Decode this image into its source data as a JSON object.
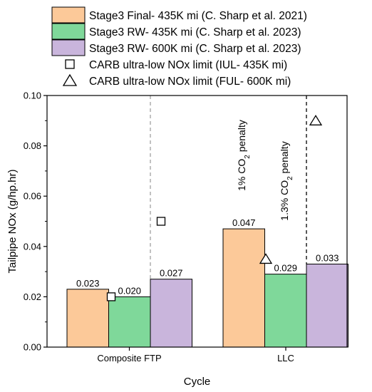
{
  "chart_data": {
    "type": "bar",
    "xlabel": "Cycle",
    "ylabel": "Tailpipe NOx (g/hp.hr)",
    "ylim": [
      0.0,
      0.1
    ],
    "yticks": [
      "0.00",
      "0.02",
      "0.04",
      "0.06",
      "0.08",
      "0.10"
    ],
    "categories": [
      "Composite FTP",
      "LLC"
    ],
    "series": [
      {
        "name": "Stage3 Final- 435K mi (C. Sharp et al. 2021)",
        "color": "#fcc999",
        "values": [
          0.023,
          0.047
        ],
        "labels": [
          "0.023",
          "0.047"
        ]
      },
      {
        "name": "Stage3 RW- 435K mi (C. Sharp et al. 2023)",
        "color": "#7fd89a",
        "values": [
          0.02,
          0.029
        ],
        "labels": [
          "0.020",
          "0.029"
        ]
      },
      {
        "name": "Stage3 RW- 600K mi (C. Sharp et al. 2023)",
        "color": "#c9b5dc",
        "values": [
          0.027,
          0.033
        ],
        "labels": [
          "0.027",
          "0.033"
        ]
      }
    ],
    "markers": [
      {
        "name": "CARB ultra-low NOx limit (IUL- 435K mi)",
        "shape": "square",
        "values": [
          0.02,
          0.05
        ]
      },
      {
        "name": "CARB ultra-low NOx limit (FUL- 600K mi)",
        "shape": "triangle",
        "values": [
          0.035,
          0.09
        ]
      }
    ],
    "annotations": [
      {
        "text": "1% CO",
        "sub": "2",
        "after": " penalty"
      },
      {
        "text": "1.3% CO",
        "sub": "2",
        "after": " penalty"
      }
    ],
    "legend_position": "top",
    "grid": false
  }
}
